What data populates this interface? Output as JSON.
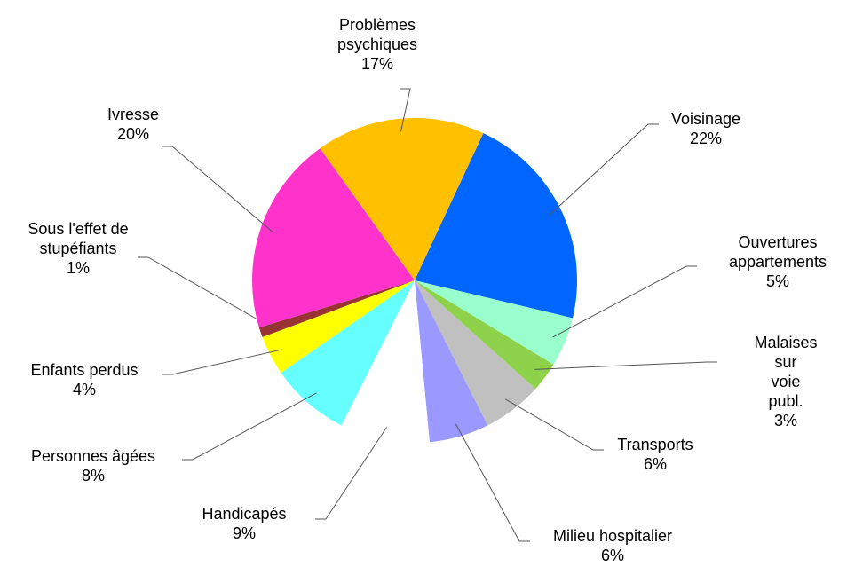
{
  "chart_data": {
    "type": "pie",
    "categories": [
      "Voisinage",
      "Ouvertures\nappartements",
      "Malaises sur\nvoie publ.",
      "Transports",
      "Milieu hospitalier",
      "Handicapés",
      "Personnes âgées",
      "Enfants perdus",
      "Sous l'effet de\nstupéfiants",
      "Ivresse",
      "Problèmes\npsychiques"
    ],
    "values": [
      22,
      5,
      3,
      6,
      6,
      9,
      8,
      4,
      1,
      20,
      17
    ],
    "value_labels": [
      "22%",
      "5%",
      "3%",
      "6%",
      "6%",
      "9%",
      "8%",
      "4%",
      "1%",
      "20%",
      "17%"
    ],
    "colors": [
      "#0066ff",
      "#99ffcc",
      "#8ed14b",
      "#c0c0c0",
      "#9999ff",
      "#ffffff",
      "#66ffff",
      "#ffff00",
      "#993333",
      "#ff33cc",
      "#ffc000"
    ]
  }
}
